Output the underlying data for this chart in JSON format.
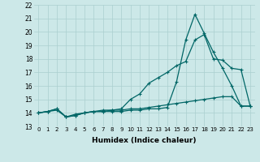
{
  "xlabel": "Humidex (Indice chaleur)",
  "bg_color": "#cce8e8",
  "grid_color": "#aacfcf",
  "line_color": "#006666",
  "xlim": [
    -0.5,
    23.5
  ],
  "ylim": [
    13,
    22
  ],
  "yticks": [
    13,
    14,
    15,
    16,
    17,
    18,
    19,
    20,
    21,
    22
  ],
  "xtick_labels": [
    "0",
    "1",
    "2",
    "3",
    "4",
    "5",
    "6",
    "7",
    "8",
    "9",
    "10",
    "11",
    "12",
    "13",
    "14",
    "15",
    "16",
    "17",
    "18",
    "19",
    "20",
    "21",
    "22",
    "23"
  ],
  "series": [
    [
      14.0,
      14.1,
      14.3,
      13.7,
      13.8,
      14.0,
      14.1,
      14.1,
      14.1,
      14.1,
      14.2,
      14.2,
      14.3,
      14.3,
      14.4,
      16.3,
      19.4,
      21.3,
      19.9,
      18.5,
      17.3,
      16.0,
      14.5,
      14.5
    ],
    [
      14.0,
      14.1,
      14.3,
      13.7,
      13.8,
      14.0,
      14.1,
      14.2,
      14.2,
      14.3,
      15.0,
      15.4,
      16.2,
      16.6,
      17.0,
      17.5,
      17.8,
      19.4,
      19.8,
      18.0,
      17.9,
      17.3,
      17.2,
      14.5
    ],
    [
      14.0,
      14.1,
      14.2,
      13.7,
      13.9,
      14.0,
      14.1,
      14.1,
      14.2,
      14.2,
      14.3,
      14.3,
      14.4,
      14.5,
      14.6,
      14.7,
      14.8,
      14.9,
      15.0,
      15.1,
      15.2,
      15.2,
      14.5,
      14.5
    ]
  ]
}
